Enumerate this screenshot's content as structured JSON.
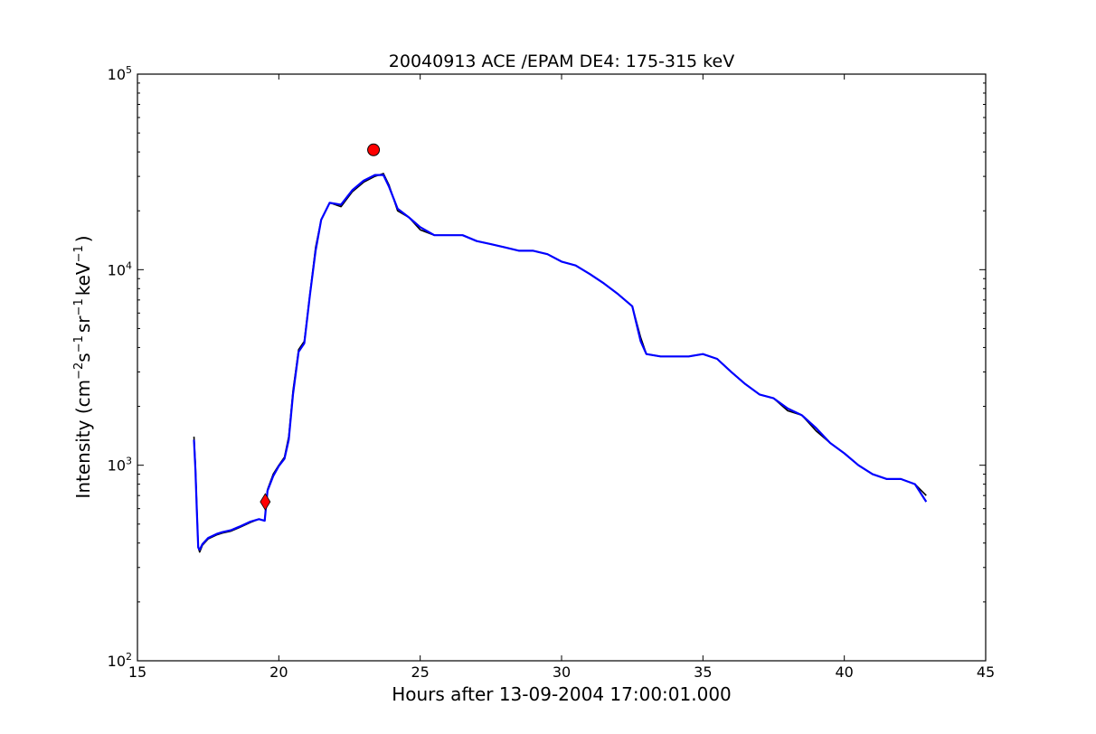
{
  "chart_data": {
    "type": "line",
    "title": "20040913 ACE /EPAM DE4: 175-315 keV",
    "xlabel": "Hours after 13-09-2004 17:00:01.000",
    "ylabel": {
      "prefix": "Intensity (cm",
      "sup1": "−2",
      "mid1": "s",
      "sup2": "−1",
      "mid2": "sr",
      "sup3": "−1",
      "mid3": "keV",
      "sup4": "−1",
      "suffix": ")"
    },
    "xlim": [
      15,
      45
    ],
    "ylim": [
      100,
      100000
    ],
    "yscale": "log",
    "grid": false,
    "xticks": [
      15,
      20,
      25,
      30,
      35,
      40,
      45
    ],
    "xtick_labels": [
      "15",
      "20",
      "25",
      "30",
      "35",
      "40",
      "45"
    ],
    "yticks": [
      {
        "value": 100,
        "base": "10",
        "exp": "2"
      },
      {
        "value": 1000,
        "base": "10",
        "exp": "3"
      },
      {
        "value": 10000,
        "base": "10",
        "exp": "4"
      },
      {
        "value": 100000,
        "base": "10",
        "exp": "5"
      }
    ],
    "series": [
      {
        "color": "#000000",
        "x": [
          17.0,
          17.05,
          17.1,
          17.15,
          17.2,
          17.3,
          17.5,
          17.8,
          18.0,
          18.3,
          18.6,
          19.0,
          19.3,
          19.5,
          19.6,
          19.8,
          20.0,
          20.2,
          20.35,
          20.5,
          20.7,
          20.9,
          21.1,
          21.3,
          21.5,
          21.8,
          22.2,
          22.6,
          23.0,
          23.4,
          23.7,
          23.9,
          24.2,
          24.6,
          25.0,
          25.5,
          26.0,
          26.5,
          27.0,
          27.5,
          28.0,
          28.5,
          29.0,
          29.5,
          30.0,
          30.5,
          31.0,
          31.5,
          32.0,
          32.5,
          32.8,
          33.0,
          33.5,
          34.0,
          34.5,
          35.0,
          35.5,
          36.0,
          36.5,
          37.0,
          37.5,
          38.0,
          38.5,
          39.0,
          39.5,
          40.0,
          40.5,
          41.0,
          41.5,
          42.0,
          42.5,
          42.9
        ],
        "y": [
          1400,
          1000,
          600,
          380,
          360,
          390,
          420,
          440,
          450,
          460,
          480,
          510,
          530,
          520,
          750,
          900,
          1000,
          1100,
          1400,
          2400,
          3900,
          4300,
          7500,
          13000,
          18000,
          22000,
          21000,
          25000,
          28000,
          30000,
          31000,
          27000,
          20000,
          18500,
          16000,
          15000,
          15000,
          15000,
          14000,
          13500,
          13000,
          12500,
          12500,
          12000,
          11000,
          10500,
          9500,
          8500,
          7500,
          6500,
          4500,
          3700,
          3600,
          3600,
          3600,
          3700,
          3500,
          3000,
          2600,
          2300,
          2200,
          1900,
          1800,
          1500,
          1300,
          1150,
          1000,
          900,
          850,
          850,
          800,
          700
        ]
      },
      {
        "color": "#0000ff",
        "x": [
          17.0,
          17.05,
          17.1,
          17.15,
          17.2,
          17.3,
          17.5,
          17.8,
          18.0,
          18.3,
          18.6,
          19.0,
          19.3,
          19.5,
          19.6,
          19.8,
          20.0,
          20.2,
          20.35,
          20.5,
          20.7,
          20.9,
          21.1,
          21.3,
          21.5,
          21.8,
          22.2,
          22.6,
          23.0,
          23.4,
          23.7,
          23.9,
          24.2,
          24.6,
          25.0,
          25.5,
          26.0,
          26.5,
          27.0,
          27.5,
          28.0,
          28.5,
          29.0,
          29.5,
          30.0,
          30.5,
          31.0,
          31.5,
          32.0,
          32.5,
          32.8,
          33.0,
          33.5,
          34.0,
          34.5,
          35.0,
          35.5,
          36.0,
          36.5,
          37.0,
          37.5,
          38.0,
          38.5,
          39.0,
          39.5,
          40.0,
          40.5,
          41.0,
          41.5,
          42.0,
          42.5,
          42.9
        ],
        "y": [
          1350,
          950,
          580,
          380,
          370,
          395,
          425,
          445,
          455,
          465,
          485,
          515,
          530,
          520,
          740,
          880,
          990,
          1080,
          1350,
          2300,
          3800,
          4200,
          7400,
          12500,
          18000,
          22000,
          21500,
          25500,
          28500,
          30500,
          30500,
          26500,
          20500,
          18500,
          16500,
          15000,
          15000,
          15000,
          14000,
          13500,
          13000,
          12500,
          12500,
          12000,
          11000,
          10500,
          9500,
          8500,
          7500,
          6500,
          4300,
          3700,
          3600,
          3600,
          3600,
          3700,
          3500,
          3000,
          2600,
          2300,
          2200,
          1950,
          1800,
          1550,
          1300,
          1150,
          1000,
          900,
          850,
          850,
          800,
          650
        ]
      }
    ],
    "markers": [
      {
        "shape": "diamond",
        "color": "#ff0000",
        "x": 19.52,
        "y": 650
      },
      {
        "shape": "circle",
        "color": "#ff0000",
        "x": 23.35,
        "y": 41000
      }
    ]
  }
}
